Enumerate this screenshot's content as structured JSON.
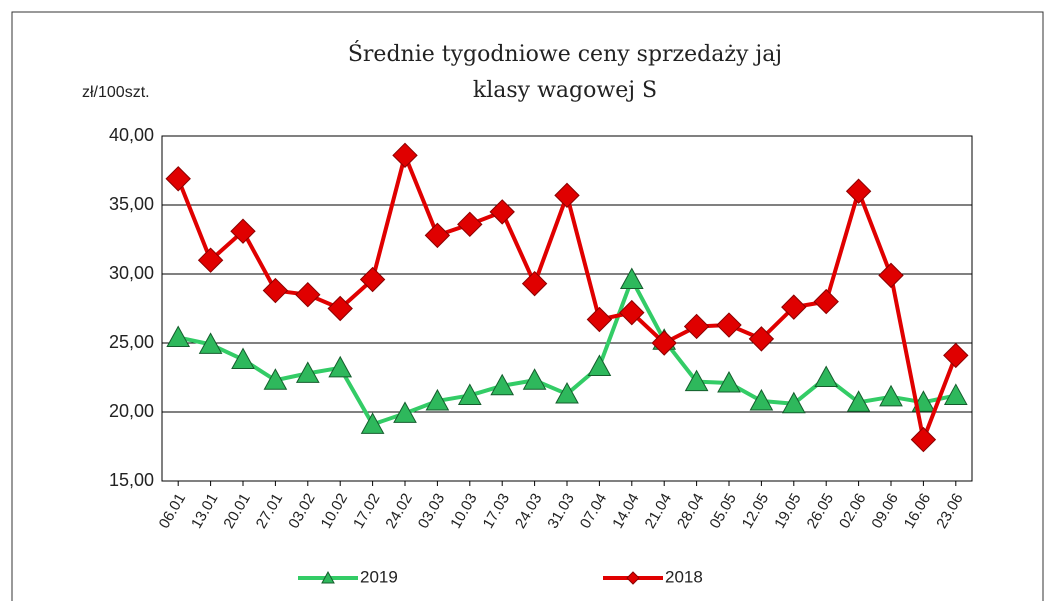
{
  "chart_data": {
    "type": "line",
    "title": [
      "Średnie tygodniowe ceny sprzedaży jaj",
      "klasy wagowej S"
    ],
    "y_label": "zł/100szt.",
    "categories": [
      "06.01",
      "13.01",
      "20.01",
      "27.01",
      "03.02",
      "10.02",
      "17.02",
      "24.02",
      "03.03",
      "10.03",
      "17.03",
      "24.03",
      "31.03",
      "07.04",
      "14.04",
      "21.04",
      "28.04",
      "05.05",
      "12.05",
      "19.05",
      "26.05",
      "02.06",
      "09.06",
      "16.06",
      "23.06"
    ],
    "series": [
      {
        "name": "2019",
        "color": "#33cc66",
        "marker": "triangle",
        "values": [
          25.4,
          24.9,
          23.8,
          22.3,
          22.8,
          23.2,
          19.1,
          19.9,
          20.8,
          21.2,
          21.9,
          22.3,
          21.3,
          23.3,
          29.6,
          25.2,
          22.2,
          22.1,
          20.8,
          20.6,
          22.5,
          20.7,
          21.1,
          20.7,
          21.2
        ]
      },
      {
        "name": "2018",
        "color": "#e00000",
        "marker": "diamond",
        "values": [
          36.9,
          31.0,
          33.1,
          28.8,
          28.5,
          27.5,
          29.6,
          38.6,
          32.8,
          33.6,
          34.5,
          29.3,
          35.7,
          26.7,
          27.2,
          25.0,
          26.2,
          26.3,
          25.3,
          27.6,
          28.0,
          36.0,
          29.9,
          18.0,
          24.1
        ]
      }
    ],
    "ylim": [
      15,
      40
    ],
    "yticks": [
      {
        "value": 15,
        "label": "15,00"
      },
      {
        "value": 20,
        "label": "20,00"
      },
      {
        "value": 25,
        "label": "25,00"
      },
      {
        "value": 30,
        "label": "30,00"
      },
      {
        "value": 35,
        "label": "35,00"
      },
      {
        "value": 40,
        "label": "40,00"
      }
    ],
    "grid": true,
    "legend": "bottom"
  }
}
